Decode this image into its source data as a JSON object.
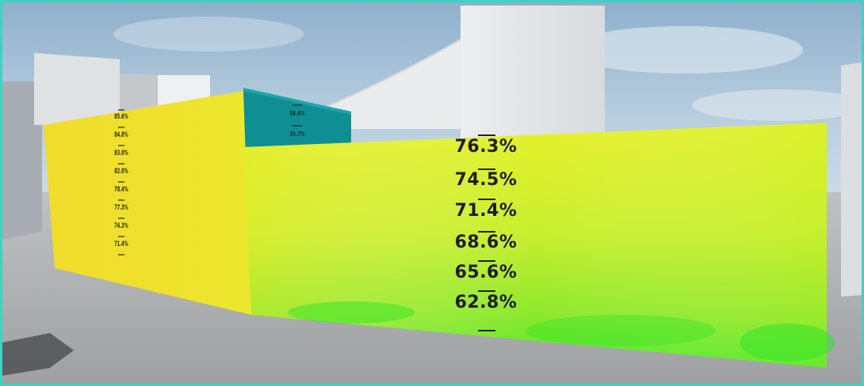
{
  "right_wall_labels": [
    "76.3%",
    "74.5%",
    "71.4%",
    "68.6%",
    "65.6%",
    "62.8%"
  ],
  "left_wall_labels": [
    "85.6%",
    "84.8%",
    "83.0%",
    "82.0%",
    "78.4%",
    "77.3%",
    "74.3%",
    "71.4%"
  ],
  "teal_block_labels": [
    "38.4%",
    "35.7%"
  ],
  "colors": {
    "frame_border": "#3fd2c2",
    "sky": "#aac3d6",
    "ground": "#a9abac",
    "building": "#e4e6e8",
    "left_wall": "#ede22c",
    "right_wall_top": "#e4f22a",
    "right_wall_bottom": "#52e828",
    "teal_block": "#0f8f93"
  }
}
